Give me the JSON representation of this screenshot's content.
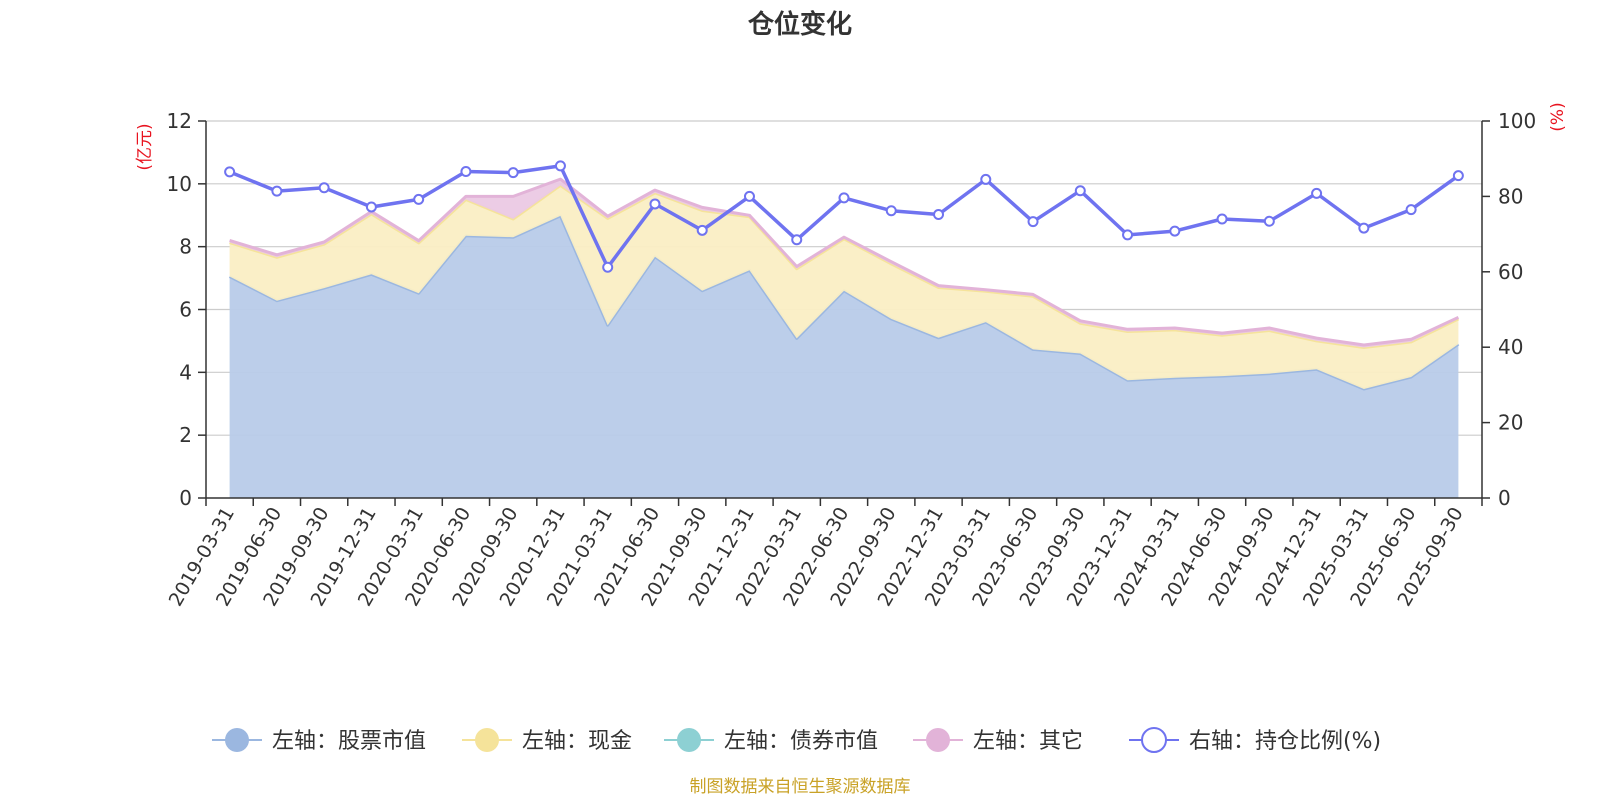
{
  "chart_data": {
    "type": "area",
    "title": "仓位变化",
    "left_axis_unit": "(亿元)",
    "right_axis_unit": "(%)",
    "categories": [
      "2019-03-31",
      "2019-06-30",
      "2019-09-30",
      "2019-12-31",
      "2020-03-31",
      "2020-06-30",
      "2020-09-30",
      "2020-12-31",
      "2021-03-31",
      "2021-06-30",
      "2021-09-30",
      "2021-12-31",
      "2022-03-31",
      "2022-06-30",
      "2022-09-30",
      "2022-12-31",
      "2023-03-31",
      "2023-06-30",
      "2023-09-30",
      "2023-12-31",
      "2024-03-31",
      "2024-06-30",
      "2024-09-30",
      "2024-12-31",
      "2025-03-31",
      "2025-06-30",
      "2025-09-30"
    ],
    "left_ylim": [
      0,
      12
    ],
    "left_ticks": [
      0,
      2,
      4,
      6,
      8,
      10,
      12
    ],
    "right_ylim": [
      0,
      100
    ],
    "right_ticks": [
      0,
      20,
      40,
      60,
      80,
      100
    ],
    "series": [
      {
        "name": "左轴：股票市值",
        "axis": "left",
        "type": "stacked-area",
        "color": "#9bb7e0",
        "fill": "#b8cbe9",
        "values": [
          7.05,
          6.28,
          6.68,
          7.12,
          6.52,
          8.35,
          8.3,
          8.98,
          5.5,
          7.68,
          6.6,
          7.25,
          5.08,
          6.6,
          5.7,
          5.1,
          5.6,
          4.73,
          4.6,
          3.75,
          3.83,
          3.88,
          3.96,
          4.1,
          3.47,
          3.85,
          4.9
        ]
      },
      {
        "name": "左轴：现金",
        "axis": "left",
        "type": "stacked-area",
        "color": "#f5e39a",
        "fill": "#faeec4",
        "values": [
          1.08,
          1.38,
          1.4,
          1.92,
          1.6,
          1.15,
          0.58,
          0.97,
          3.4,
          2.03,
          2.55,
          1.7,
          2.22,
          1.65,
          1.75,
          1.6,
          0.98,
          1.69,
          0.96,
          1.55,
          1.52,
          1.3,
          1.37,
          0.9,
          1.32,
          1.12,
          0.8
        ]
      },
      {
        "name": "左轴：债券市值",
        "axis": "left",
        "type": "stacked-area",
        "color": "#8dd0d3",
        "fill": "#bfe5e7",
        "values": [
          0,
          0,
          0,
          0,
          0,
          0,
          0,
          0,
          0,
          0,
          0,
          0,
          0,
          0,
          0,
          0,
          0,
          0,
          0,
          0,
          0,
          0,
          0,
          0,
          0,
          0,
          0
        ]
      },
      {
        "name": "左轴：其它",
        "axis": "left",
        "type": "stacked-area",
        "color": "#e2b3d8",
        "fill": "#ebc9e4",
        "values": [
          0.07,
          0.08,
          0.07,
          0.08,
          0.07,
          0.1,
          0.72,
          0.2,
          0.07,
          0.09,
          0.1,
          0.05,
          0.07,
          0.05,
          0.07,
          0.06,
          0.05,
          0.06,
          0.08,
          0.07,
          0.06,
          0.07,
          0.08,
          0.09,
          0.08,
          0.08,
          0.05
        ]
      },
      {
        "name": "右轴：持仓比例(%)",
        "axis": "right",
        "type": "line",
        "color": "#6f73f0",
        "values": [
          86.5,
          81.4,
          82.3,
          77.2,
          79.2,
          86.6,
          86.3,
          88.1,
          61.2,
          78.0,
          71.0,
          80.0,
          68.5,
          79.6,
          76.2,
          75.2,
          84.5,
          73.3,
          81.5,
          69.8,
          70.8,
          74.0,
          73.4,
          80.8,
          71.6,
          76.5,
          85.5
        ]
      }
    ],
    "legend": [
      "左轴：股票市值",
      "左轴：现金",
      "左轴：债券市值",
      "左轴：其它",
      "右轴：持仓比例(%)"
    ],
    "legend_position": "bottom-center",
    "grid": true
  },
  "footer": {
    "source": "制图数据来自恒生聚源数据库"
  }
}
